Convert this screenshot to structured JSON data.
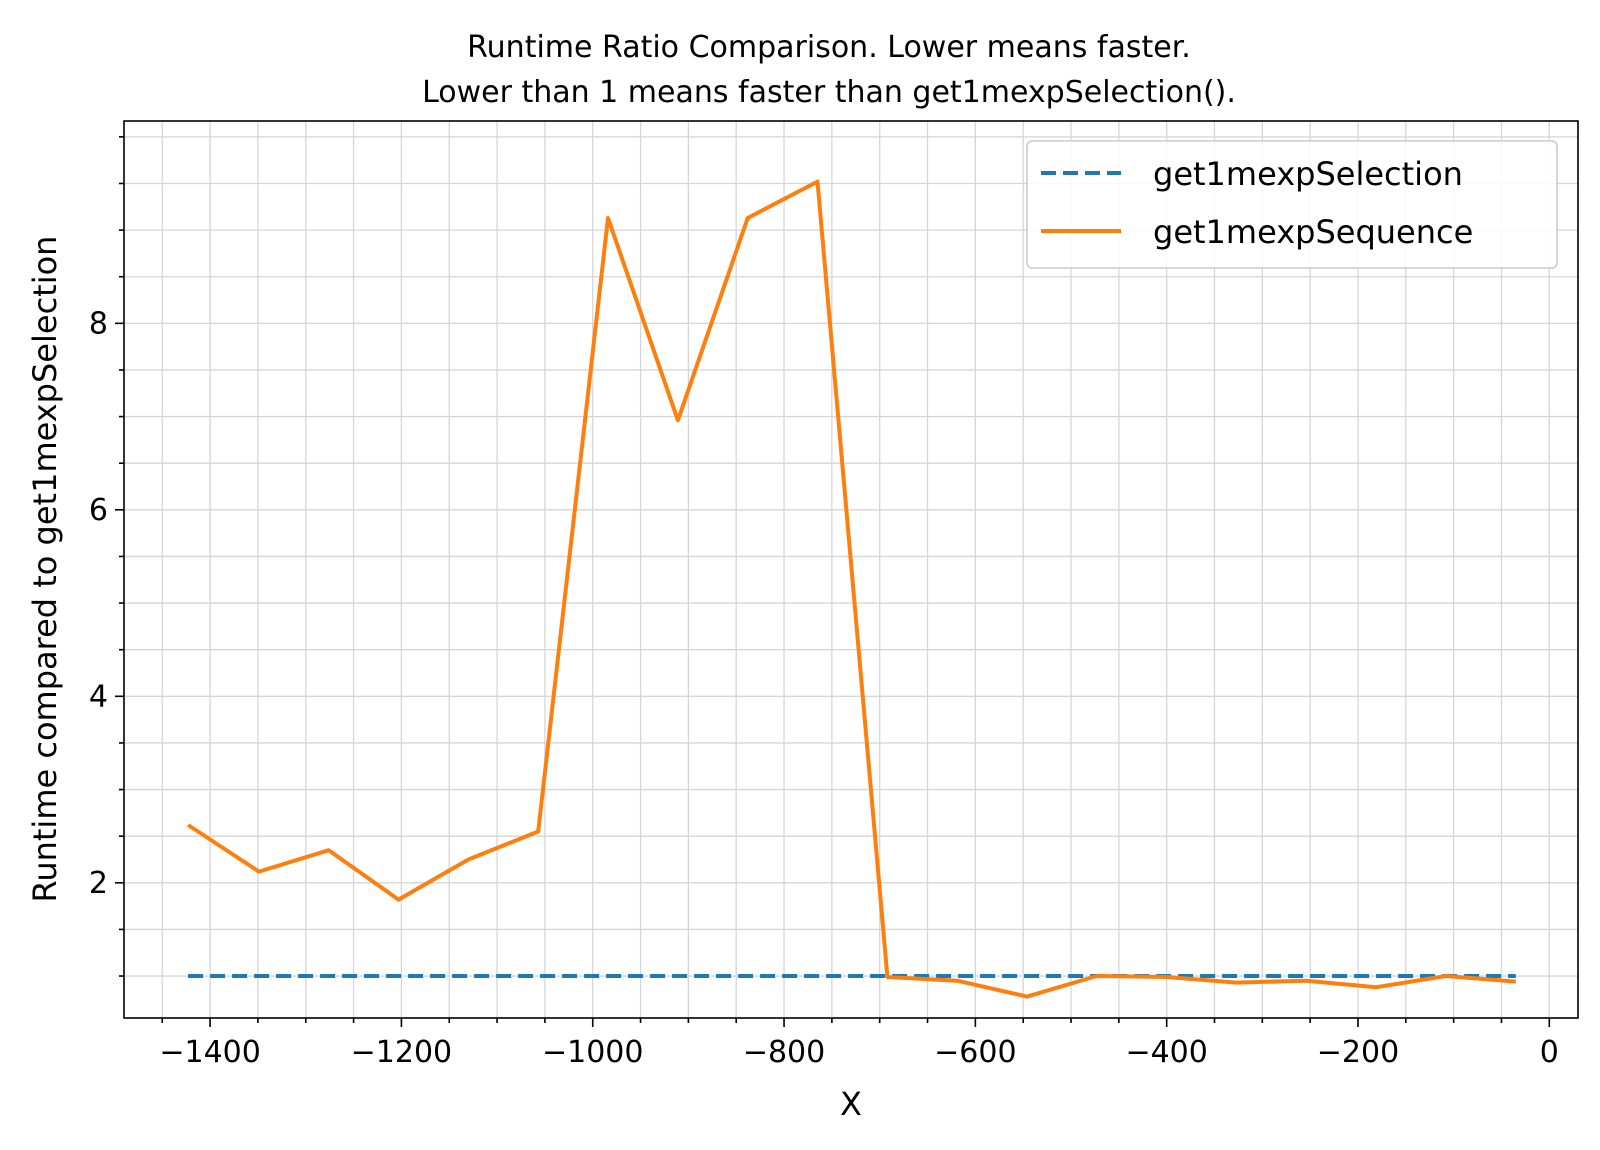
{
  "chart_data": {
    "type": "line",
    "title": "Runtime Ratio Comparison. Lower means faster.\nLower than 1 means faster than get1mexpSelection().",
    "xlabel": "X",
    "ylabel": "Runtime compared to get1mexpSelection",
    "xlim": [
      -1490,
      30
    ],
    "ylim": [
      0.55,
      10.17
    ],
    "xticks": [
      -1400,
      -1200,
      -1000,
      -800,
      -600,
      -400,
      -200,
      0
    ],
    "xtick_labels": [
      "−1400",
      "−1200",
      "−1000",
      "−800",
      "−600",
      "−400",
      "−200",
      "0"
    ],
    "yticks": [
      2,
      4,
      6,
      8
    ],
    "ytick_labels": [
      "2",
      "4",
      "6",
      "8"
    ],
    "x_minor_step": 50,
    "y_minor_step": 0.5,
    "grid": true,
    "legend_position": "upper right",
    "series": [
      {
        "name": "get1mexpSelection",
        "style": "dashed",
        "color": "#1f77b4",
        "x": [
          -1423,
          -1349,
          -1276,
          -1203,
          -1130,
          -1057,
          -984,
          -911,
          -838,
          -765,
          -692,
          -619,
          -546,
          -473,
          -400,
          -327,
          -254,
          -181,
          -108,
          -35
        ],
        "y": [
          1.0,
          1.0,
          1.0,
          1.0,
          1.0,
          1.0,
          1.0,
          1.0,
          1.0,
          1.0,
          1.0,
          1.0,
          1.0,
          1.0,
          1.0,
          1.0,
          1.0,
          1.0,
          1.0,
          1.0
        ]
      },
      {
        "name": "get1mexpSequence",
        "style": "solid",
        "color": "#ff7f0e",
        "x": [
          -1423,
          -1349,
          -1276,
          -1203,
          -1130,
          -1057,
          -984,
          -911,
          -838,
          -765,
          -692,
          -619,
          -546,
          -473,
          -400,
          -327,
          -254,
          -181,
          -108,
          -35
        ],
        "y": [
          2.62,
          2.12,
          2.35,
          1.82,
          2.25,
          2.55,
          9.13,
          6.96,
          9.13,
          9.52,
          0.99,
          0.95,
          0.78,
          1.0,
          0.99,
          0.93,
          0.95,
          0.88,
          1.0,
          0.94
        ]
      }
    ]
  }
}
